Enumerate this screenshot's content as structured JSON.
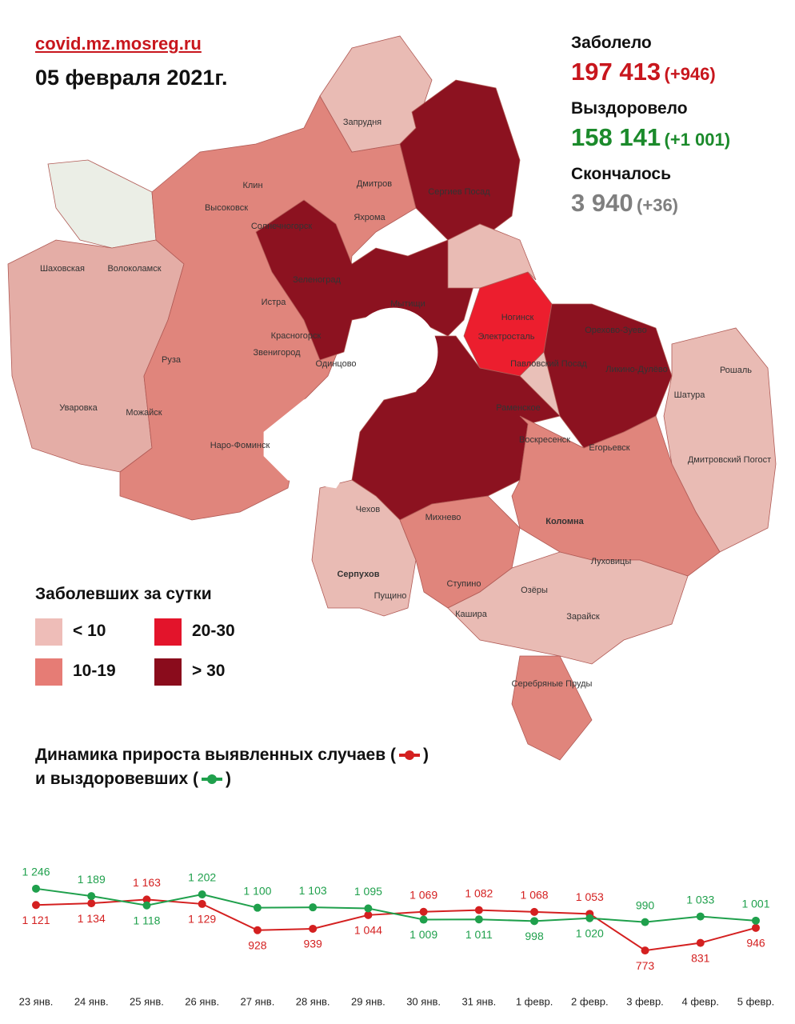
{
  "header": {
    "source": "covid.mz.mosreg.ru",
    "date": "05 февраля 2021г."
  },
  "stats": [
    {
      "label": "Заболело",
      "value": "197 413",
      "change": "(+946)",
      "color": "#c8161d"
    },
    {
      "label": "Выздоровело",
      "value": "158 141",
      "change": "(+1 001)",
      "color": "#1b8a2b"
    },
    {
      "label": "Скончалось",
      "value": "3 940",
      "change": "(+36)",
      "color": "#7f7f7f"
    }
  ],
  "map": {
    "labels": [
      "Клин",
      "Высоковск",
      "Солнечногорск",
      "Дмитров",
      "Яхрома",
      "Сергиев Посад",
      "Запрудня",
      "Шаховская",
      "Волоколамск",
      "Истра",
      "Зеленоград",
      "Мытищи",
      "Ногинск",
      "Электросталь",
      "Орехово-Зуево",
      "Павловский Посад",
      "Ликино-Дулёво",
      "Рошаль",
      "Шатура",
      "Красногорск",
      "Звенигород",
      "Одинцово",
      "Руза",
      "Уваровка",
      "Можайск",
      "Наро-Фоминск",
      "Раменское",
      "Воскресенск",
      "Егорьевск",
      "Дмитровский Погост",
      "Чехов",
      "Михнево",
      "Коломна",
      "Луховицы",
      "Серпухов",
      "Пущино",
      "Ступино",
      "Озёры",
      "Кашира",
      "Зарайск",
      "Серебряные Пруды"
    ]
  },
  "legend": {
    "title": "Заболевших за сутки",
    "items": [
      {
        "label": "< 10",
        "color": "#eebdb8"
      },
      {
        "label": "10-19",
        "color": "#e67c75"
      },
      {
        "label": "20-30",
        "color": "#e3142b"
      },
      {
        "label": "> 30",
        "color": "#8a0c1c"
      }
    ]
  },
  "chart_data": {
    "type": "line",
    "brackets": [
      "(",
      ")"
    ],
    "categories": [
      "23 янв.",
      "24 янв.",
      "25 янв.",
      "26 янв.",
      "27 янв.",
      "28 янв.",
      "29 янв.",
      "30 янв.",
      "31 янв.",
      "1 февр.",
      "2 февр.",
      "3 февр.",
      "4 февр.",
      "5 февр."
    ],
    "ylim": [
      700,
      1300
    ],
    "series": [
      {
        "name": "Динамика прироста выявленных случаев",
        "color": "#d42020",
        "values": [
          1121,
          1134,
          1163,
          1129,
          928,
          939,
          1044,
          1069,
          1082,
          1068,
          1053,
          773,
          831,
          946
        ],
        "value_labels": [
          "1 121",
          "1 134",
          "1 163",
          "1 129",
          "928",
          "939",
          "1 044",
          "1 069",
          "1 082",
          "1 068",
          "1 053",
          "773",
          "831",
          "946"
        ]
      },
      {
        "name": "и выздоровевших",
        "color": "#1fa04c",
        "values": [
          1246,
          1189,
          1118,
          1202,
          1100,
          1103,
          1095,
          1009,
          1011,
          998,
          1020,
          990,
          1033,
          1001
        ],
        "value_labels": [
          "1 246",
          "1 189",
          "1 118",
          "1 202",
          "1 100",
          "1 103",
          "1 095",
          "1 009",
          "1 011",
          "998",
          "1 020",
          "990",
          "1 033",
          "1 001"
        ]
      }
    ]
  }
}
